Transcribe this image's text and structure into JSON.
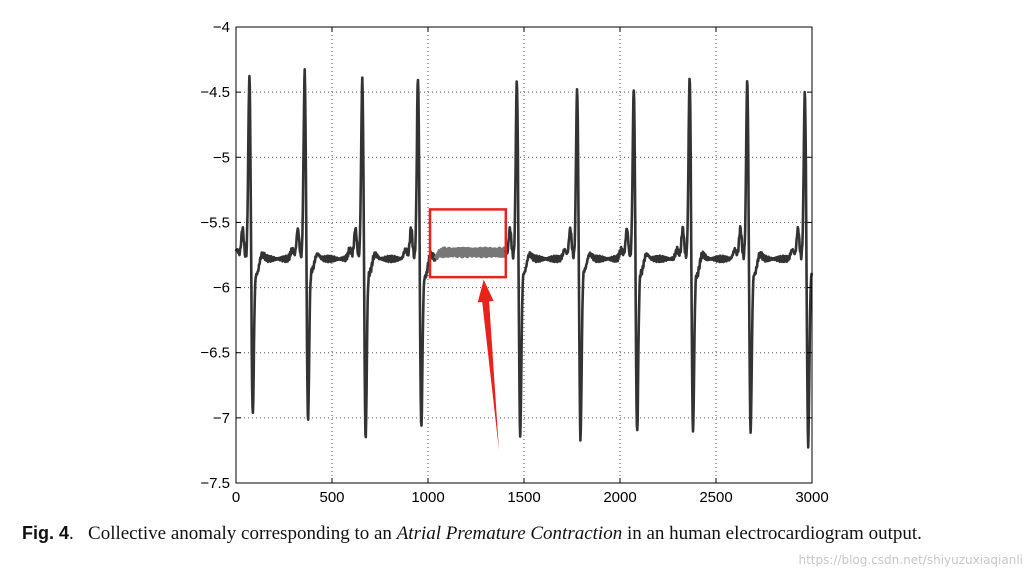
{
  "chart_data": {
    "type": "line",
    "title": "",
    "xlabel": "",
    "ylabel": "",
    "xlim": [
      0,
      3000
    ],
    "ylim": [
      -7.5,
      -4
    ],
    "x_ticks": [
      0,
      500,
      1000,
      1500,
      2000,
      2500,
      3000
    ],
    "x_tick_labels": [
      "0",
      "500",
      "1000",
      "1500",
      "2000",
      "2500",
      "3000"
    ],
    "y_ticks": [
      -4,
      -4.5,
      -5,
      -5.5,
      -6,
      -6.5,
      -7,
      -7.5
    ],
    "y_tick_labels": [
      "−4",
      "−4.5",
      "−5",
      "−5.5",
      "−6",
      "−6.5",
      "−7",
      "−7.5"
    ],
    "grid": true,
    "baseline": -5.78,
    "beats": [
      {
        "r_x": 70,
        "r_peak": -4.35,
        "s_trough": -6.97,
        "t_peak": -5.93
      },
      {
        "r_x": 358,
        "r_peak": -4.32,
        "s_trough": -7.01,
        "t_peak": -5.9
      },
      {
        "r_x": 658,
        "r_peak": -4.37,
        "s_trough": -7.15,
        "t_peak": -5.92
      },
      {
        "r_x": 948,
        "r_peak": -4.37,
        "s_trough": -7.07,
        "t_peak": -5.95
      },
      {
        "r_x": 1463,
        "r_peak": -4.4,
        "s_trough": -7.14,
        "t_peak": -5.92
      },
      {
        "r_x": 1777,
        "r_peak": -4.46,
        "s_trough": -7.17,
        "t_peak": -5.9
      },
      {
        "r_x": 2072,
        "r_peak": -4.45,
        "s_trough": -7.12,
        "t_peak": -5.92
      },
      {
        "r_x": 2363,
        "r_peak": -4.37,
        "s_trough": -7.11,
        "t_peak": -5.94
      },
      {
        "r_x": 2663,
        "r_peak": -4.4,
        "s_trough": -7.11,
        "t_peak": -5.93
      },
      {
        "r_x": 2963,
        "r_peak": -4.49,
        "s_trough": -7.21,
        "t_peak": -5.93
      }
    ],
    "anomaly": {
      "x_start": 1040,
      "x_end": 1400,
      "level": -5.73,
      "box": {
        "x0": 1000,
        "x1": 1400,
        "y0": -5.4,
        "y1": -5.92
      }
    },
    "annotations": [
      {
        "type": "box",
        "color": "#e8231c"
      },
      {
        "type": "arrow",
        "color": "#e8231c",
        "from": [
          1370,
          -7.25
        ],
        "to": [
          1290,
          -5.94
        ]
      }
    ],
    "colors": {
      "line": "#333333",
      "anomaly": "#777777",
      "annotation": "#e8231c"
    }
  },
  "caption": {
    "label": "Fig. 4",
    "text_before": ".   Collective anomaly corresponding to an ",
    "text_emph": "Atrial Premature Contraction",
    "text_after": " in an human electrocardiogram output."
  },
  "watermark": "https://blog.csdn.net/shiyuzuxiaqianli"
}
